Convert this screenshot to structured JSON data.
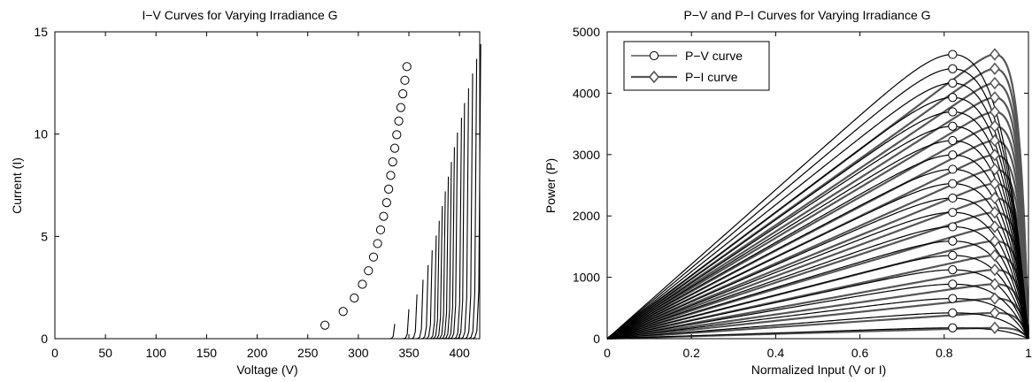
{
  "chart_data": [
    {
      "type": "line",
      "title": "I−V Curves for Varying Irradiance G",
      "xlabel": "Voltage (V)",
      "ylabel": "Current (I)",
      "xlim": [
        0,
        420
      ],
      "ylim": [
        0,
        15
      ],
      "xticks": [
        "0",
        "50",
        "100",
        "150",
        "200",
        "250",
        "300",
        "350",
        "400"
      ],
      "yticks": [
        "0",
        "5",
        "10",
        "15"
      ],
      "grid": false,
      "series_count": 20,
      "short_circuit_current": [
        0.72,
        1.44,
        2.16,
        2.88,
        3.6,
        4.32,
        5.04,
        5.76,
        6.48,
        7.2,
        7.92,
        8.64,
        9.36,
        10.08,
        10.8,
        11.52,
        12.24,
        12.96,
        13.68,
        14.4
      ],
      "open_circuit_voltage": [
        336,
        350,
        358,
        364,
        369,
        373,
        377,
        380,
        383,
        386,
        389,
        392,
        395,
        398,
        402,
        405,
        409,
        413,
        417,
        421
      ],
      "mpp_voltage": [
        267,
        285,
        296,
        304,
        310,
        315,
        319,
        322,
        325,
        328,
        330,
        332,
        334,
        336,
        338,
        340,
        342,
        344,
        346,
        348
      ],
      "mpp_current": [
        0.66,
        1.33,
        1.99,
        2.66,
        3.32,
        3.99,
        4.65,
        5.32,
        5.98,
        6.65,
        7.31,
        7.98,
        8.64,
        9.31,
        9.97,
        10.64,
        11.3,
        11.97,
        12.63,
        13.3
      ]
    },
    {
      "type": "line",
      "title": "P−V and P−I Curves for Varying Irradiance G",
      "xlabel": "Normalized Input (V or I)",
      "ylabel": "Power (P)",
      "xlim": [
        0,
        1
      ],
      "ylim": [
        0,
        5000
      ],
      "xticks": [
        "0",
        "0.2",
        "0.4",
        "0.6",
        "0.8",
        "1"
      ],
      "yticks": [
        "0",
        "1000",
        "2000",
        "3000",
        "4000",
        "5000"
      ],
      "grid": false,
      "legend": {
        "placement": "top-left",
        "entries": [
          "P−V curve",
          "P−I curve"
        ]
      },
      "series_count": 20,
      "pv_peak_x": 0.82,
      "pi_peak_x": 0.92,
      "peak_power": [
        176,
        420,
        654,
        888,
        1122,
        1356,
        1590,
        1824,
        2058,
        2292,
        2526,
        2760,
        2994,
        3228,
        3462,
        3696,
        3930,
        4164,
        4398,
        4632
      ],
      "colors": {
        "pv": "#000000",
        "pi": "#555555"
      }
    }
  ]
}
